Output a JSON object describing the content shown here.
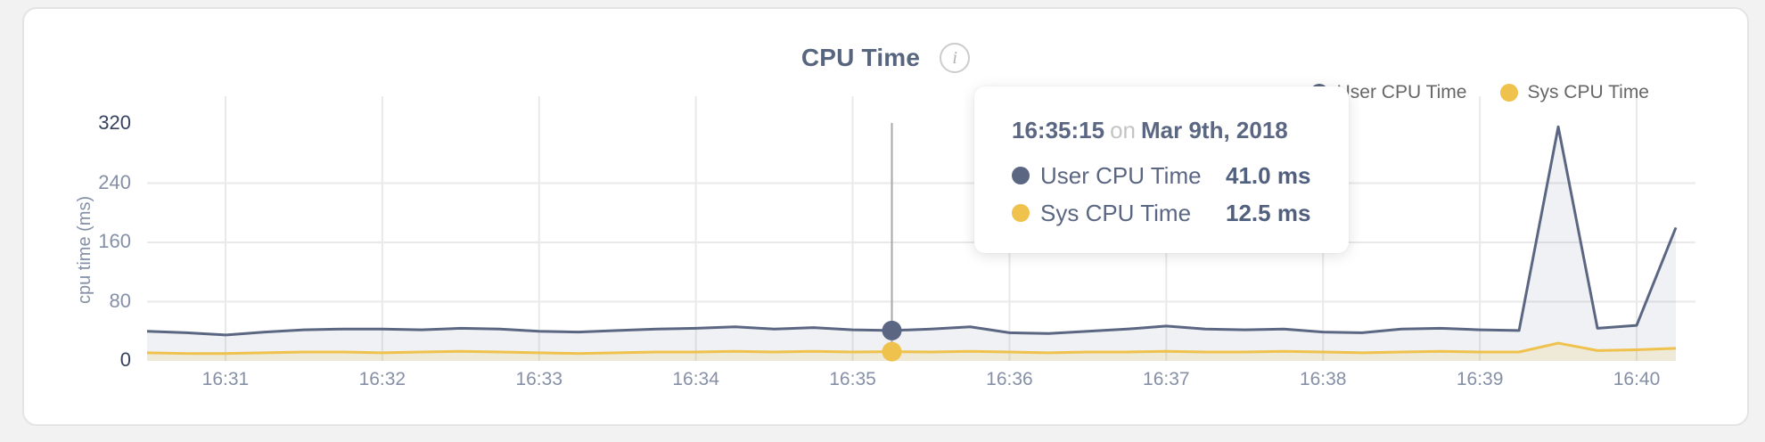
{
  "header": {
    "title": "CPU Time",
    "info_glyph": "i"
  },
  "legend": {
    "items": [
      {
        "label": "User CPU Time",
        "color": "#5b6782"
      },
      {
        "label": "Sys CPU Time",
        "color": "#eec24d"
      }
    ]
  },
  "axes": {
    "y_label": "cpu time (ms)"
  },
  "tooltip": {
    "time": "16:35:15",
    "separator": "on",
    "date": "Mar 9th, 2018",
    "rows": [
      {
        "label": "User CPU Time",
        "value": "41.0 ms",
        "color": "#5b6782"
      },
      {
        "label": "Sys CPU Time",
        "value": "12.5 ms",
        "color": "#eec24d"
      }
    ]
  },
  "colors": {
    "grid": "#e9e9e9",
    "crosshair": "#a8a8a8",
    "accent_user": "#5b6782",
    "accent_sys": "#eec24d",
    "title": "#57657f",
    "axis_text": "#8590a6",
    "axis_text_strong": "#36415f"
  },
  "chart_data": {
    "type": "area",
    "title": "CPU Time",
    "xlabel": "",
    "ylabel": "cpu time (ms)",
    "ylim": [
      0,
      320
    ],
    "y_ticks": [
      0,
      80,
      160,
      240,
      320
    ],
    "x_start": "16:30:30",
    "x_end": "16:40:15",
    "interval_seconds": 15,
    "x_tick_labels": [
      "16:31",
      "16:32",
      "16:33",
      "16:34",
      "16:35",
      "16:36",
      "16:37",
      "16:38",
      "16:39",
      "16:40"
    ],
    "grid": true,
    "legend_position": "top-right",
    "series": [
      {
        "name": "User CPU Time",
        "color": "#5b6782",
        "fill": "rgba(91,103,130,0.09)",
        "values": [
          40,
          38,
          35,
          39,
          42,
          43,
          43,
          42,
          44,
          43,
          40,
          39,
          41,
          43,
          44,
          46,
          43,
          45,
          42,
          41,
          43,
          46,
          38,
          37,
          40,
          43,
          47,
          43,
          42,
          43,
          39,
          38,
          43,
          44,
          42,
          41,
          316,
          44,
          48,
          180
        ]
      },
      {
        "name": "Sys CPU Time",
        "color": "#eec24d",
        "fill": "rgba(238,194,77,0.16)",
        "values": [
          11,
          10,
          10,
          11,
          12,
          12,
          11,
          12,
          13,
          12,
          11,
          10,
          11,
          12,
          12,
          13,
          12,
          13,
          12,
          12.5,
          12,
          13,
          12,
          11,
          12,
          12,
          13,
          12,
          12,
          13,
          12,
          11,
          12,
          13,
          12,
          12,
          24,
          14,
          15,
          17
        ]
      }
    ],
    "cursor": {
      "index": 19,
      "time": "16:35:15",
      "values": [
        41.0,
        12.5
      ]
    }
  }
}
